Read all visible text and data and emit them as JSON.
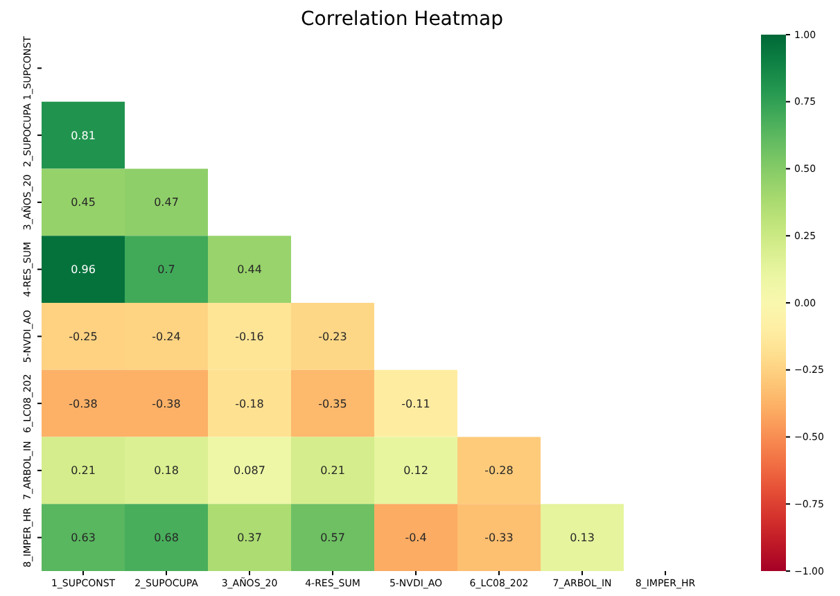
{
  "chart_data": {
    "type": "heatmap",
    "title": "Correlation Heatmap",
    "categories": [
      "1_SUPCONST",
      "2_SUPOCUPA",
      "3_AÑOS_20",
      "4-RES_SUM",
      "5-NVDI_AO",
      "6_LC08_202",
      "7_ARBOL_IN",
      "8_IMPER_HR"
    ],
    "y_categories": [
      "1_SUPCONST",
      "2_SUPOCUPA",
      "3_AÑOS_20",
      "4-RES_SUM",
      "5-NVDI_AO",
      "6_LC08_202",
      "7_ARBOL_IN",
      "8_IMPER_HR"
    ],
    "cells": [
      [
        null,
        null,
        null,
        null,
        null,
        null,
        null,
        null
      ],
      [
        0.81,
        null,
        null,
        null,
        null,
        null,
        null,
        null
      ],
      [
        0.45,
        0.47,
        null,
        null,
        null,
        null,
        null,
        null
      ],
      [
        0.96,
        0.7,
        0.44,
        null,
        null,
        null,
        null,
        null
      ],
      [
        -0.25,
        -0.24,
        -0.16,
        -0.23,
        null,
        null,
        null,
        null
      ],
      [
        -0.38,
        -0.38,
        -0.18,
        -0.35,
        -0.11,
        null,
        null,
        null
      ],
      [
        0.21,
        0.18,
        0.087,
        0.21,
        0.12,
        -0.28,
        null,
        null
      ],
      [
        0.63,
        0.68,
        0.37,
        0.57,
        -0.4,
        -0.33,
        0.13,
        null
      ]
    ],
    "data_labels": true,
    "clim": [
      -1,
      1
    ],
    "cticks": [
      {
        "value": -1,
        "label": "−1.00"
      },
      {
        "value": -0.75,
        "label": "−0.75"
      },
      {
        "value": -0.5,
        "label": "−0.50"
      },
      {
        "value": -0.25,
        "label": "−0.25"
      },
      {
        "value": 0,
        "label": "0.00"
      },
      {
        "value": 0.25,
        "label": "0.25"
      },
      {
        "value": 0.5,
        "label": "0.50"
      },
      {
        "value": 0.75,
        "label": "0.75"
      },
      {
        "value": 1,
        "label": "1.00"
      }
    ]
  }
}
